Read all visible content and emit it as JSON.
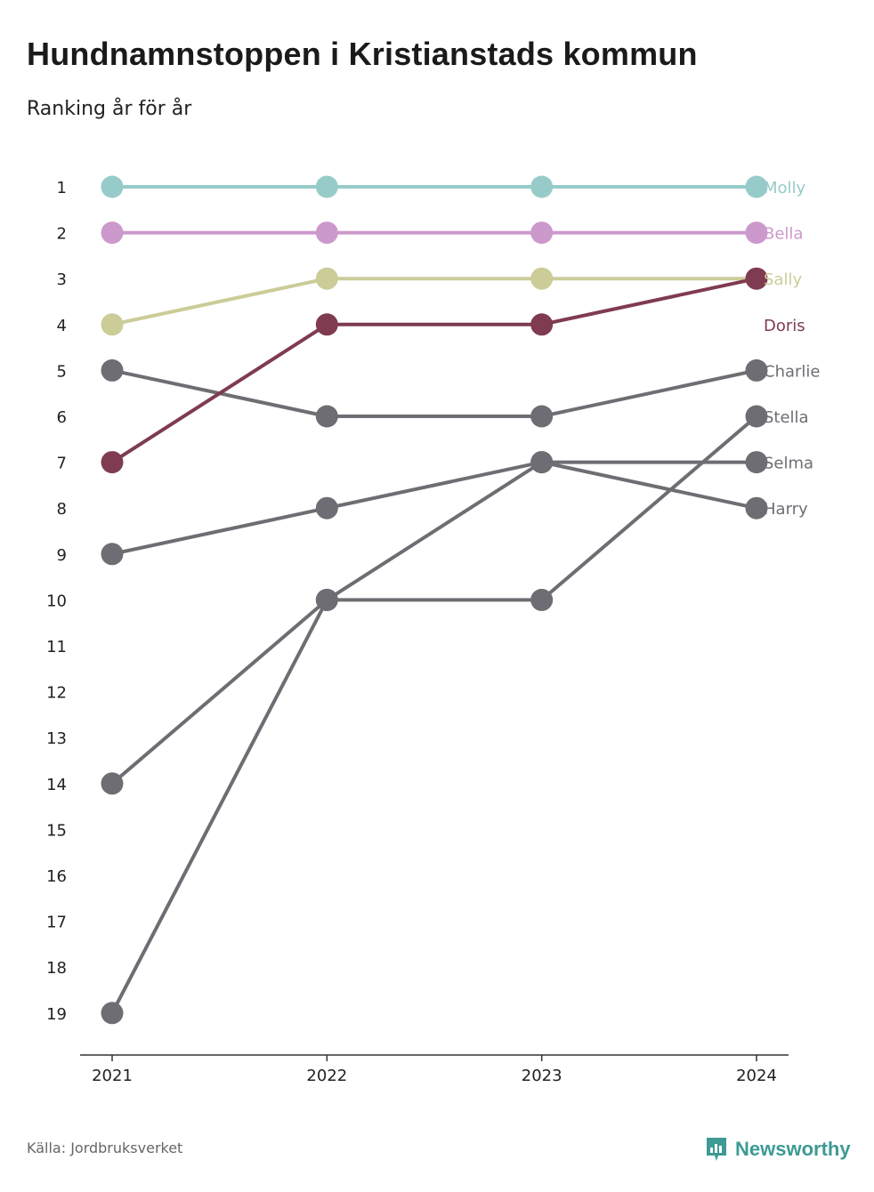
{
  "title": "Hundnamnstoppen i Kristianstads kommun",
  "subtitle": "Ranking år för år",
  "source": "Källa: Jordbruksverket",
  "brand": {
    "name": "Newsworthy",
    "icon": "newsworthy-logo-icon",
    "color": "#3d9a94"
  },
  "chart_data": {
    "type": "line",
    "subtype": "bump",
    "x": [
      "2021",
      "2022",
      "2023",
      "2024"
    ],
    "y_ticks": [
      1,
      2,
      3,
      4,
      5,
      6,
      7,
      8,
      9,
      10,
      11,
      12,
      13,
      14,
      15,
      16,
      17,
      18,
      19
    ],
    "ylim": [
      1,
      19
    ],
    "y_reversed": true,
    "grid": false,
    "series": [
      {
        "name": "Molly",
        "values": [
          1,
          1,
          1,
          1
        ],
        "color": "#96cbc9",
        "label_color": "#96cbc9"
      },
      {
        "name": "Bella",
        "values": [
          2,
          2,
          2,
          2
        ],
        "color": "#cc99cc",
        "label_color": "#cc99cc"
      },
      {
        "name": "Sally",
        "values": [
          4,
          3,
          3,
          3
        ],
        "color": "#cccc99",
        "label_color": "#cccc99"
      },
      {
        "name": "Charlie",
        "values": [
          5,
          6,
          6,
          5
        ],
        "color": "#6e6d73",
        "label_color": "#6e6d73"
      },
      {
        "name": "Selma",
        "values": [
          9,
          8,
          7,
          7
        ],
        "color": "#6e6d73",
        "label_color": "#6e6d73"
      },
      {
        "name": "Harry",
        "values": [
          14,
          10,
          7,
          8
        ],
        "color": "#6e6d73",
        "label_color": "#6e6d73"
      },
      {
        "name": "Stella",
        "values": [
          19,
          10,
          10,
          6
        ],
        "color": "#6e6d73",
        "label_color": "#6e6d73"
      },
      {
        "name": "Doris",
        "values": [
          7,
          4,
          4,
          3
        ],
        "color": "#7f3b50",
        "label_color": "#7f3b50"
      }
    ]
  }
}
